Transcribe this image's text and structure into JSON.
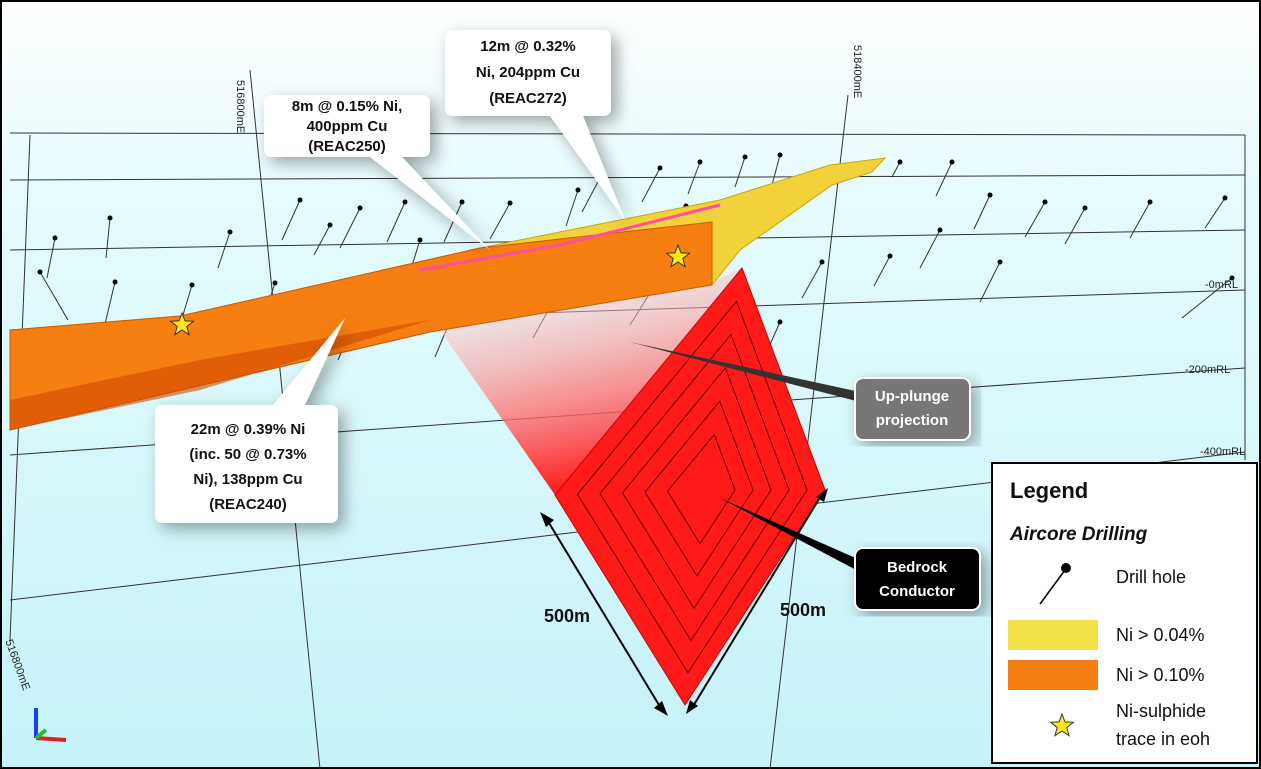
{
  "grid_labels": {
    "easting": [
      "516800mE",
      "518400mE",
      "516800mE"
    ],
    "rl": [
      "-0mRL",
      "-200mRL",
      "-400mRL"
    ]
  },
  "callouts": [
    {
      "lines": [
        "8m @ 0.15% Ni,",
        "400ppm Cu",
        "(REAC250)"
      ]
    },
    {
      "lines": [
        "12m @ 0.32%",
        "Ni, 204ppm Cu",
        "(REAC272)"
      ]
    },
    {
      "lines": [
        "22m @ 0.39% Ni",
        "(inc. 50 @ 0.73%",
        "Ni), 138ppm Cu",
        "(REAC240)"
      ]
    }
  ],
  "annotations": {
    "up_plunge": [
      "Up-plunge",
      "projection"
    ],
    "conductor": [
      "Bedrock",
      "Conductor"
    ]
  },
  "dimensions": [
    "500m",
    "500m"
  ],
  "legend": {
    "title": "Legend",
    "subtitle": "Aircore Drilling",
    "items": [
      {
        "label": [
          "Drill hole"
        ]
      },
      {
        "label": [
          "Ni > 0.04%"
        ]
      },
      {
        "label": [
          "Ni > 0.10%"
        ]
      },
      {
        "label": [
          "Ni-sulphide",
          "trace in eoh"
        ]
      }
    ]
  }
}
